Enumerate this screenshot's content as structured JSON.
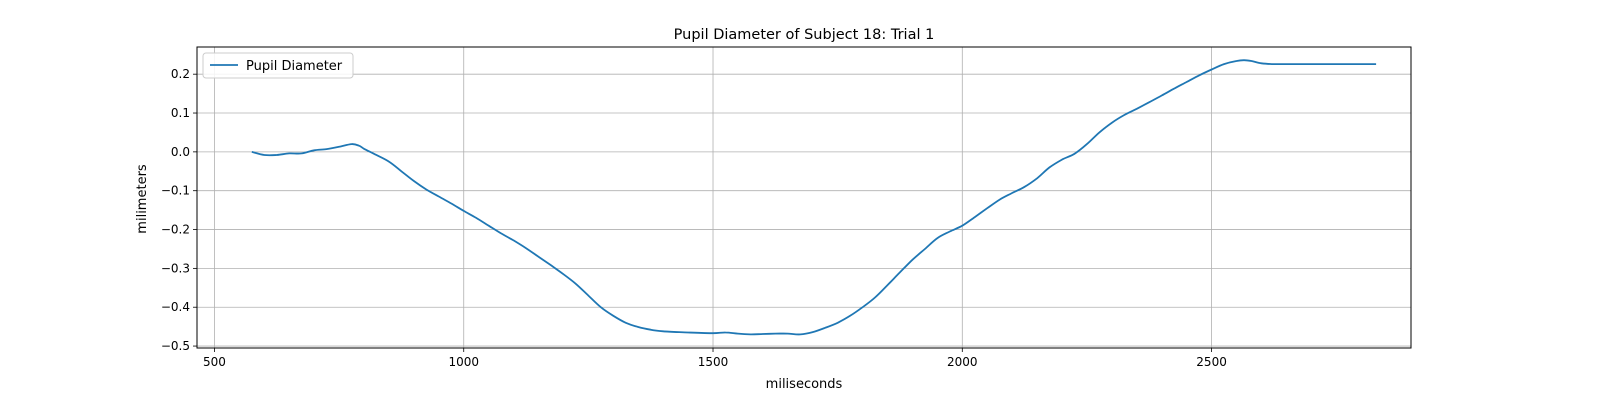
{
  "chart_data": {
    "type": "line",
    "title": "Pupil Diameter of Subject 18: Trial 1",
    "xlabel": "miliseconds",
    "ylabel": "milimeters",
    "xlim": [
      465,
      2900
    ],
    "ylim": [
      -0.505,
      0.27
    ],
    "xticks": [
      500,
      1000,
      1500,
      2000,
      2500
    ],
    "yticks": [
      -0.5,
      -0.4,
      -0.3,
      -0.2,
      -0.1,
      0.0,
      0.1,
      0.2
    ],
    "grid": true,
    "legend": {
      "position": "upper-left"
    },
    "series": [
      {
        "name": "Pupil Diameter",
        "color": "#1f77b4",
        "x": [
          575,
          600,
          625,
          650,
          675,
          700,
          725,
          750,
          775,
          790,
          800,
          820,
          850,
          875,
          900,
          925,
          950,
          975,
          1000,
          1025,
          1050,
          1075,
          1100,
          1125,
          1150,
          1175,
          1200,
          1225,
          1250,
          1275,
          1300,
          1325,
          1350,
          1375,
          1400,
          1450,
          1500,
          1525,
          1550,
          1575,
          1600,
          1625,
          1650,
          1675,
          1700,
          1725,
          1750,
          1775,
          1800,
          1825,
          1850,
          1875,
          1900,
          1925,
          1950,
          1975,
          2000,
          2025,
          2050,
          2075,
          2100,
          2125,
          2150,
          2175,
          2200,
          2225,
          2250,
          2275,
          2300,
          2325,
          2350,
          2375,
          2400,
          2425,
          2450,
          2475,
          2500,
          2525,
          2550,
          2565,
          2580,
          2600,
          2625,
          2650,
          2700,
          2750,
          2800,
          2830
        ],
        "y": [
          0.0,
          -0.008,
          -0.008,
          -0.004,
          -0.004,
          0.004,
          0.007,
          0.013,
          0.02,
          0.016,
          0.008,
          -0.005,
          -0.025,
          -0.05,
          -0.075,
          -0.097,
          -0.115,
          -0.133,
          -0.152,
          -0.17,
          -0.19,
          -0.21,
          -0.228,
          -0.248,
          -0.27,
          -0.292,
          -0.315,
          -0.34,
          -0.37,
          -0.4,
          -0.422,
          -0.44,
          -0.451,
          -0.458,
          -0.462,
          -0.465,
          -0.467,
          -0.465,
          -0.468,
          -0.47,
          -0.469,
          -0.468,
          -0.468,
          -0.47,
          -0.464,
          -0.453,
          -0.44,
          -0.422,
          -0.4,
          -0.375,
          -0.343,
          -0.31,
          -0.278,
          -0.25,
          -0.222,
          -0.205,
          -0.19,
          -0.168,
          -0.145,
          -0.123,
          -0.106,
          -0.09,
          -0.068,
          -0.04,
          -0.02,
          -0.005,
          0.02,
          0.05,
          0.075,
          0.095,
          0.111,
          0.128,
          0.145,
          0.163,
          0.18,
          0.197,
          0.212,
          0.226,
          0.234,
          0.236,
          0.234,
          0.228,
          0.226,
          0.226,
          0.226,
          0.226,
          0.226,
          0.226
        ]
      }
    ]
  }
}
